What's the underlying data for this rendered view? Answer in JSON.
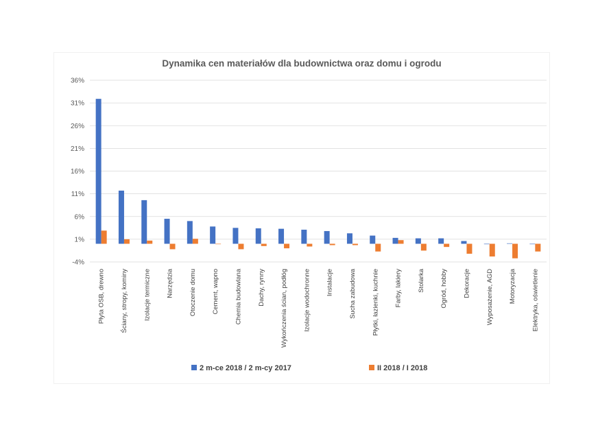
{
  "chart_data": {
    "type": "bar",
    "title": "Dynamika cen materiałów dla budownictwa oraz domu i ogrodu",
    "xlabel": "",
    "ylabel": "",
    "ylim": [
      -4,
      36
    ],
    "yticks": [
      "36%",
      "31%",
      "26%",
      "21%",
      "16%",
      "11%",
      "6%",
      "1%",
      "-4%"
    ],
    "ytick_values": [
      36,
      31,
      26,
      21,
      16,
      11,
      6,
      1,
      -4
    ],
    "grid": true,
    "legend_position": "bottom",
    "categories": [
      "Płyta OSB, drewno",
      "Ściany, stropy, kominy",
      "Izolacje termiczne",
      "Narzędzia",
      "Otoczenie domu",
      "Cement, wapno",
      "Chemia budowlana",
      "Dachy, rynny",
      "Wykończenia ścian, podłóg",
      "Izolacje wodochronne",
      "Instalacje",
      "Sucha zabudowa",
      "Płytki, łazienki, kuchnie",
      "Farby, lakiery",
      "Stolarka",
      "Ogród, hobby",
      "Dekoracje",
      "Wyposażenie, AGD",
      "Motoryzacja",
      "Elektryka, oświetlenie"
    ],
    "series": [
      {
        "name": "2 m-ce 2018 / 2 m-cy 2017",
        "color": "#4472C4",
        "values": [
          31.9,
          11.7,
          9.6,
          5.5,
          5.0,
          3.8,
          3.5,
          3.4,
          3.3,
          3.1,
          2.8,
          2.3,
          1.8,
          1.3,
          1.2,
          1.2,
          0.6,
          -0.1,
          0.1,
          -0.1
        ]
      },
      {
        "name": "II 2018 / I 2018",
        "color": "#ED7D31",
        "values": [
          2.9,
          1.0,
          0.7,
          -1.2,
          1.1,
          -0.1,
          -1.2,
          -0.5,
          -1.0,
          -0.6,
          -0.3,
          -0.3,
          -1.7,
          0.8,
          -1.5,
          -0.7,
          -2.2,
          -2.8,
          -3.2,
          -1.7
        ]
      }
    ]
  }
}
